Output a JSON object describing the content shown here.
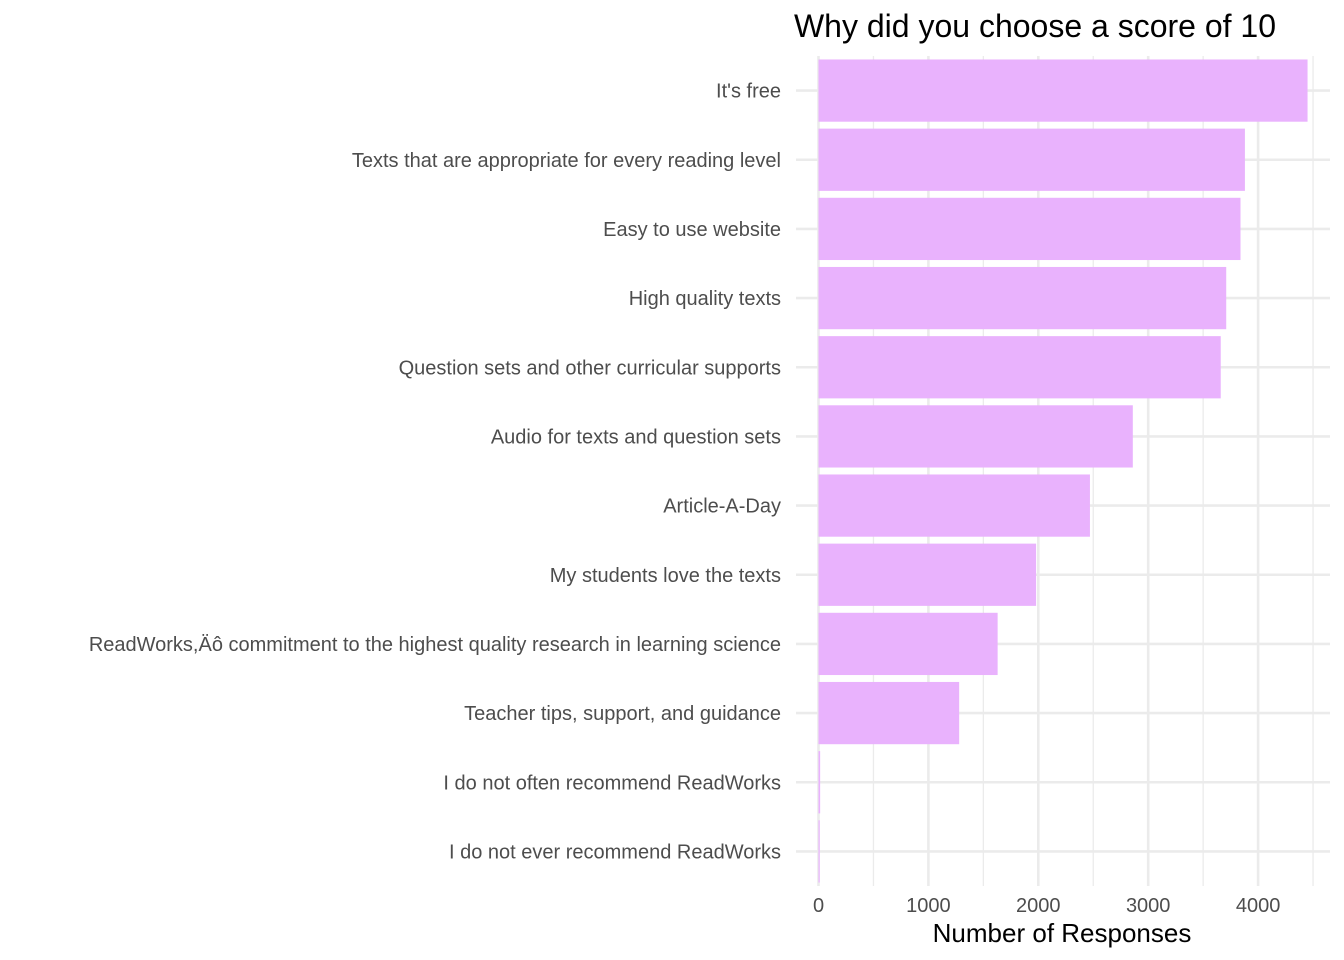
{
  "chart_data": {
    "type": "bar",
    "orientation": "horizontal",
    "title": "Why did you choose a score of 10",
    "xlabel": "Number of Responses",
    "ylabel": "",
    "xlim": [
      0,
      4650
    ],
    "x_ticks": [
      0,
      1000,
      2000,
      3000,
      4000
    ],
    "x_tick_labels": [
      "0",
      "1000",
      "2000",
      "3000",
      "4000"
    ],
    "grid": true,
    "bar_color": "#e9b2fd",
    "grid_color": "#ebebeb",
    "categories": [
      "It's free",
      "Texts that are appropriate for every reading level",
      "Easy to use website",
      "High quality texts",
      "Question sets and other curricular supports",
      "Audio for texts and question sets",
      "Article-A-Day",
      "My students love the texts",
      "ReadWorks,Äô commitment to the highest quality research in learning science",
      "Teacher tips, support, and guidance",
      "I do not often recommend ReadWorks",
      "I do not ever recommend ReadWorks"
    ],
    "values": [
      4450,
      3880,
      3840,
      3710,
      3660,
      2860,
      2470,
      1980,
      1630,
      1280,
      15,
      10
    ]
  }
}
